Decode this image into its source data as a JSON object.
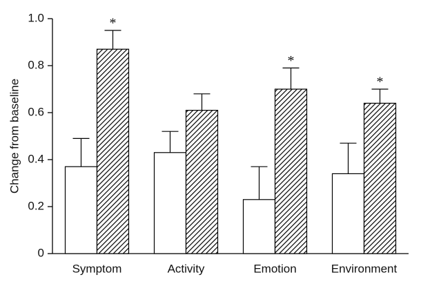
{
  "chart_data": {
    "type": "bar",
    "y_label": "Change from baseline",
    "categories": [
      "Symptom",
      "Activity",
      "Emotion",
      "Environment"
    ],
    "series": [
      {
        "color": "#ffffff",
        "hatch": false,
        "values": [
          0.37,
          0.43,
          0.23,
          0.34
        ],
        "errors": [
          0.12,
          0.09,
          0.14,
          0.13
        ]
      },
      {
        "color": "#000000",
        "hatch": true,
        "values": [
          0.87,
          0.61,
          0.7,
          0.64
        ],
        "errors": [
          0.08,
          0.07,
          0.09,
          0.06
        ],
        "markers": [
          "*",
          null,
          "*",
          "*"
        ]
      }
    ],
    "ylim": [
      0,
      1
    ],
    "yticks": [
      0,
      0.2,
      0.4,
      0.6,
      0.8,
      {
        "value": 1,
        "label": "1.0"
      }
    ],
    "grid": false
  }
}
